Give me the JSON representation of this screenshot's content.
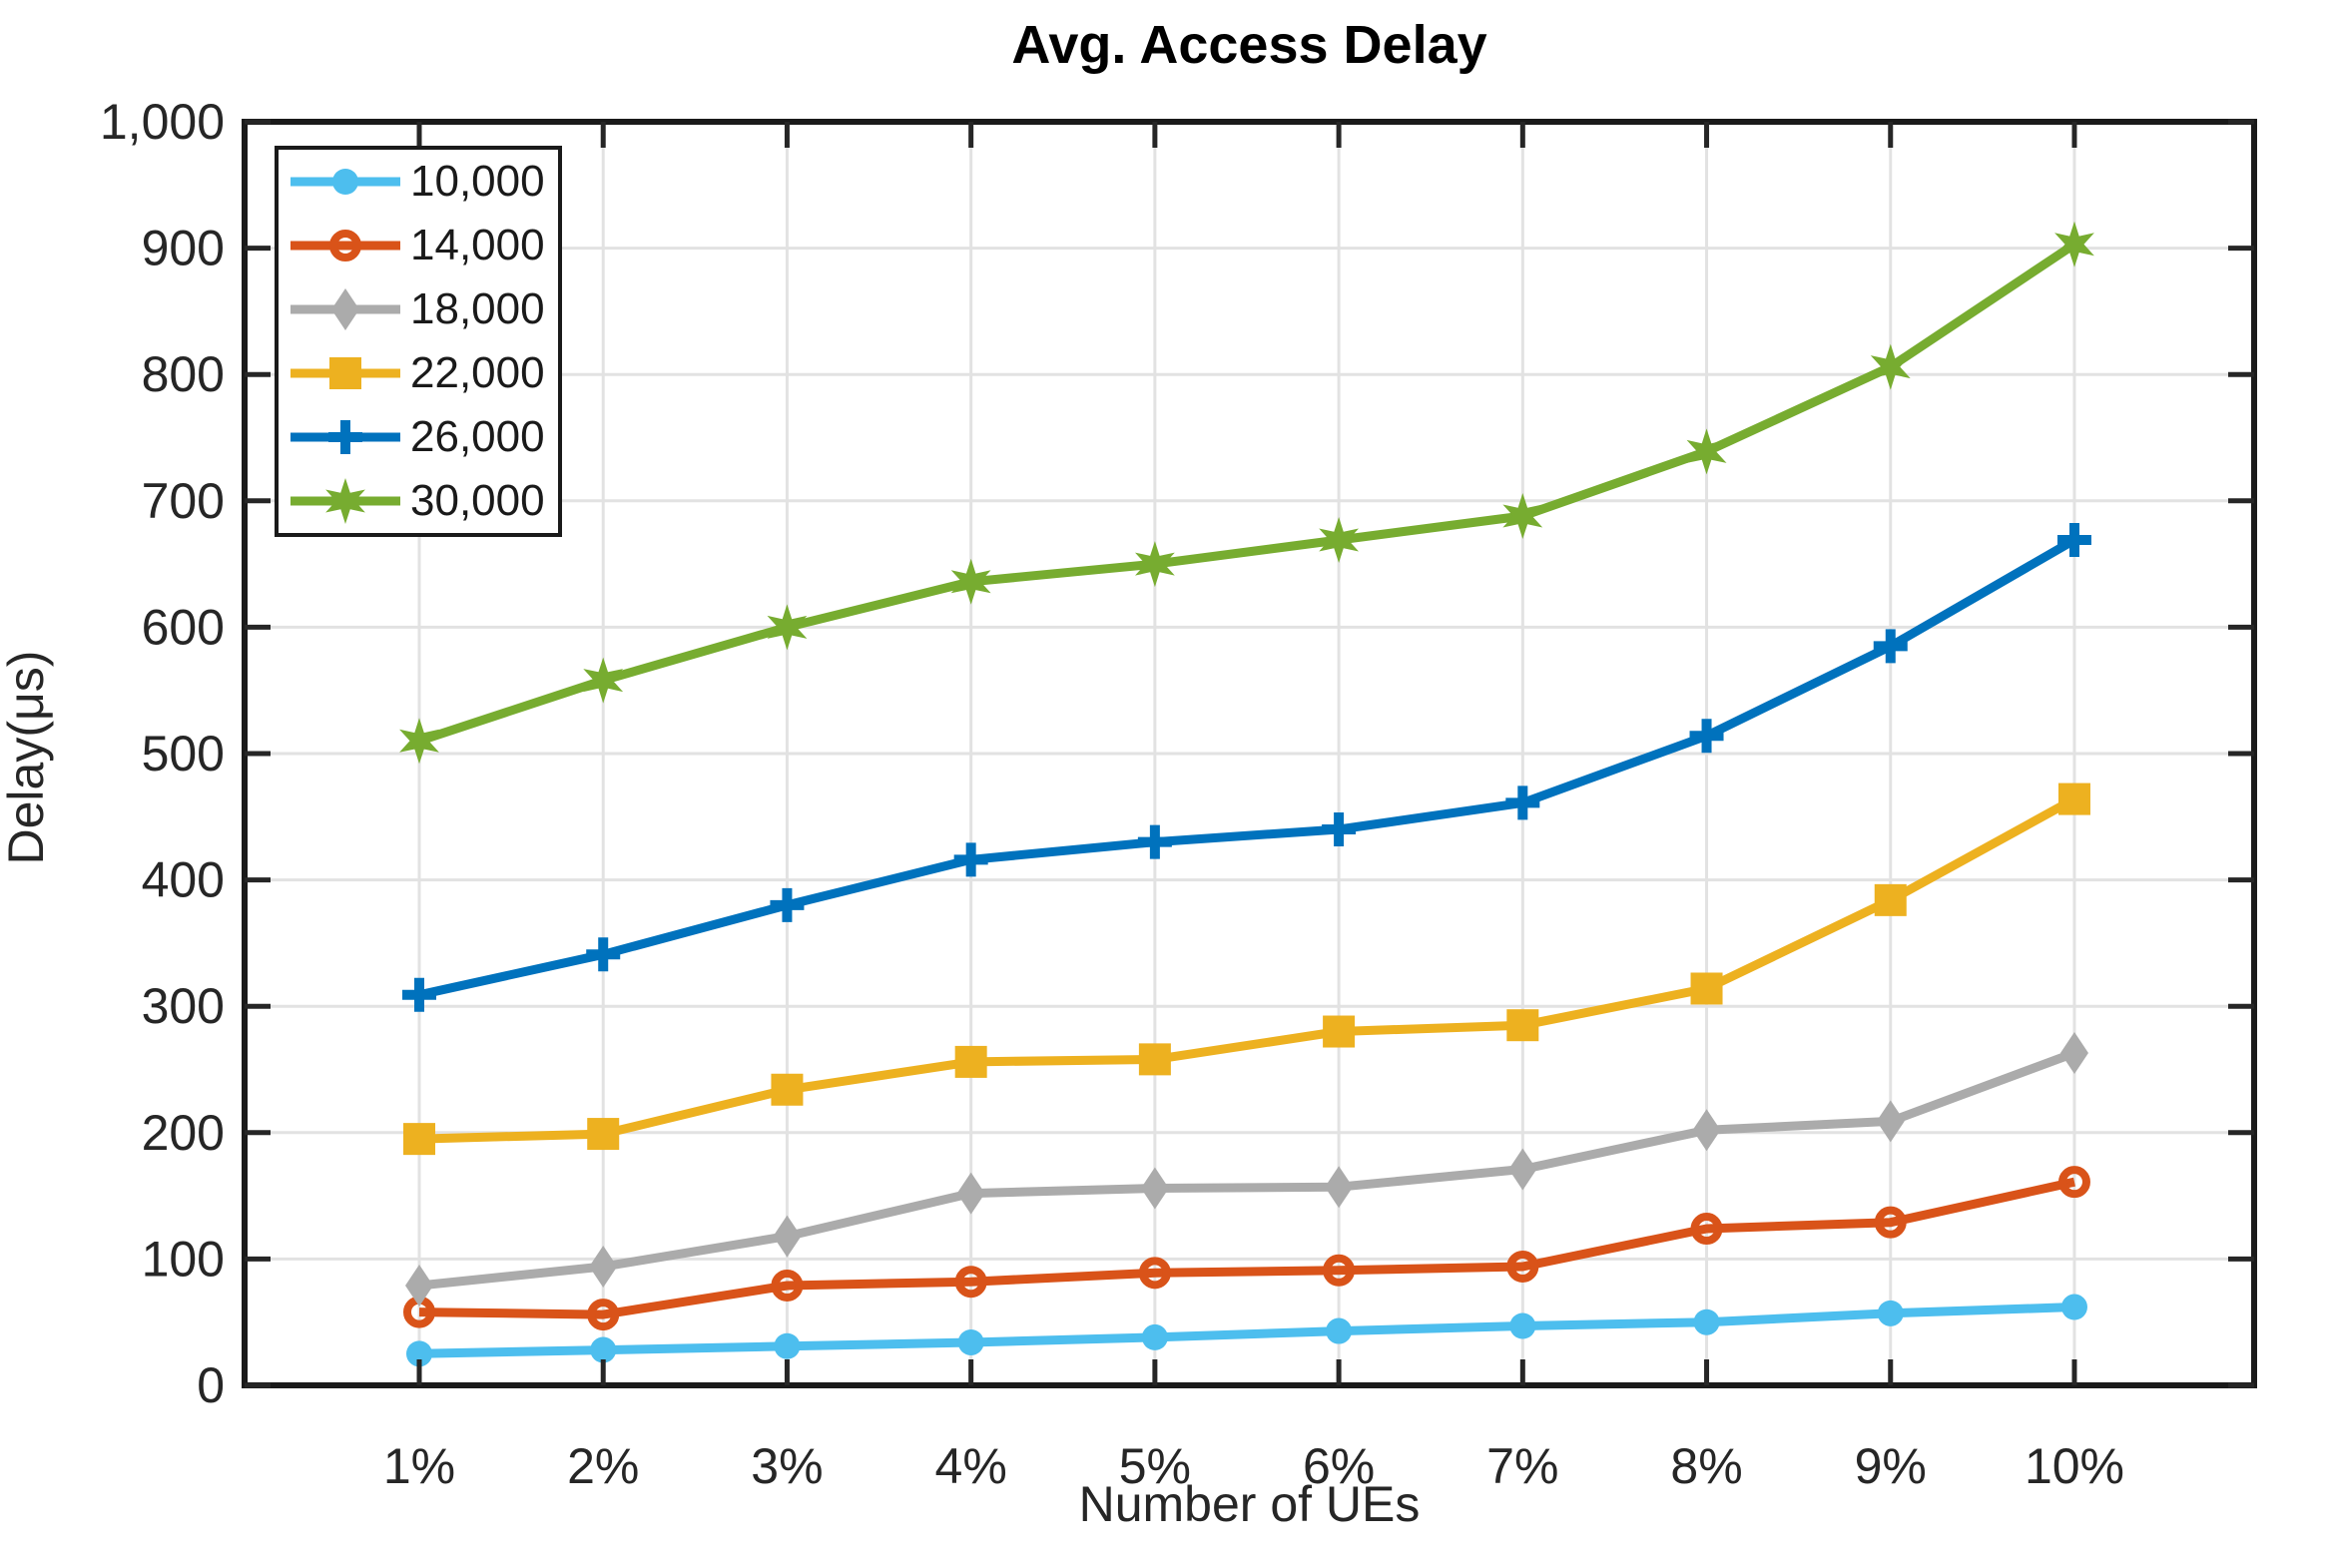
{
  "figure": {
    "title": "Avg. Access Delay",
    "xlabel": "Number of UEs",
    "ylabel": "Delay(μs)"
  },
  "chart_data": {
    "type": "line",
    "title": "Avg. Access Delay",
    "xlabel": "Number of UEs",
    "ylabel": "Delay(μs)",
    "categories": [
      "1%",
      "2%",
      "3%",
      "4%",
      "5%",
      "6%",
      "7%",
      "8%",
      "9%",
      "10%"
    ],
    "y_ticks": [
      0,
      100,
      200,
      300,
      400,
      500,
      600,
      700,
      800,
      900,
      1000
    ],
    "y_tick_labels": [
      "0",
      "100",
      "200",
      "300",
      "400",
      "500",
      "600",
      "700",
      "800",
      "900",
      "1,000"
    ],
    "ylim": [
      0,
      1000
    ],
    "grid": true,
    "legend_position": "top-left",
    "axis_color": "#262626",
    "frame_color": "#1a1a1a",
    "grid_color": "#e2e2e2",
    "series": [
      {
        "name": "10,000",
        "color": "#4DBEEE",
        "marker": "circle-filled",
        "values": [
          25,
          28,
          31,
          34,
          38,
          43,
          47,
          50,
          57,
          62
        ]
      },
      {
        "name": "14,000",
        "color": "#D95319",
        "marker": "circle-open",
        "values": [
          58,
          56,
          79,
          82,
          89,
          91,
          94,
          124,
          129,
          161
        ]
      },
      {
        "name": "18,000",
        "color": "#ABABAB",
        "marker": "diamond",
        "values": [
          79,
          94,
          118,
          152,
          156,
          157,
          171,
          202,
          209,
          263
        ]
      },
      {
        "name": "22,000",
        "color": "#EDB120",
        "marker": "square",
        "values": [
          195,
          199,
          234,
          256,
          258,
          280,
          285,
          314,
          384,
          464
        ]
      },
      {
        "name": "26,000",
        "color": "#0072BD",
        "marker": "plus",
        "values": [
          309,
          341,
          380,
          416,
          430,
          440,
          461,
          514,
          585,
          669
        ]
      },
      {
        "name": "30,000",
        "color": "#77AC30",
        "marker": "hexagram",
        "values": [
          510,
          558,
          600,
          636,
          650,
          669,
          688,
          739,
          806,
          903
        ]
      }
    ]
  }
}
